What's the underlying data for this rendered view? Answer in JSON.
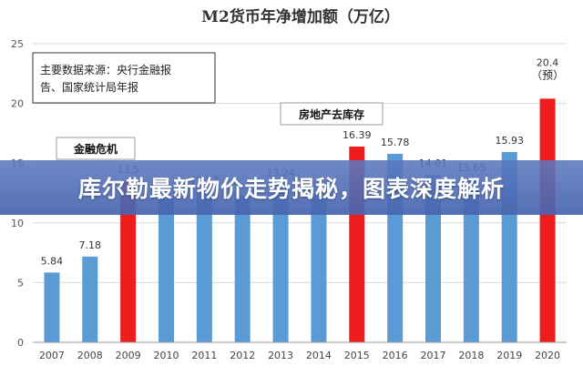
{
  "banner": {
    "headline": "库尔勒最新物价走势揭秘，图表深度解析"
  },
  "chart_data": {
    "type": "bar",
    "title": "M2货币年净增加额（万亿）",
    "categories": [
      "2007",
      "2008",
      "2009",
      "2010",
      "2011",
      "2012",
      "2013",
      "2014",
      "2015",
      "2016",
      "2017",
      "2018",
      "2019",
      "2020"
    ],
    "values": [
      5.84,
      7.18,
      13.5,
      12.0,
      12.57,
      12.3,
      13.24,
      12.3,
      16.39,
      15.78,
      14.01,
      13.65,
      15.93,
      20.4
    ],
    "value_labels": [
      "5.84",
      "7.18",
      "13.5",
      "",
      "12.57",
      "",
      "13.24",
      "",
      "16.39",
      "15.78",
      "14.01",
      "13.65",
      "15.93",
      "20.4"
    ],
    "highlight": [
      false,
      false,
      true,
      false,
      false,
      false,
      false,
      false,
      true,
      false,
      false,
      false,
      false,
      true
    ],
    "colors": {
      "normal": "#5b9bd5",
      "highlight": "#ee1c1c"
    },
    "ylim": [
      0,
      25
    ],
    "yticks": [
      0,
      5,
      10,
      15,
      20,
      25
    ],
    "grid": true,
    "annotations": {
      "source_box": [
        "主要数据来源：央行金融报",
        "告、国家统计局年报"
      ],
      "crisis": "金融危机",
      "housing": "房地产去库存",
      "estimate": "（预）"
    }
  }
}
